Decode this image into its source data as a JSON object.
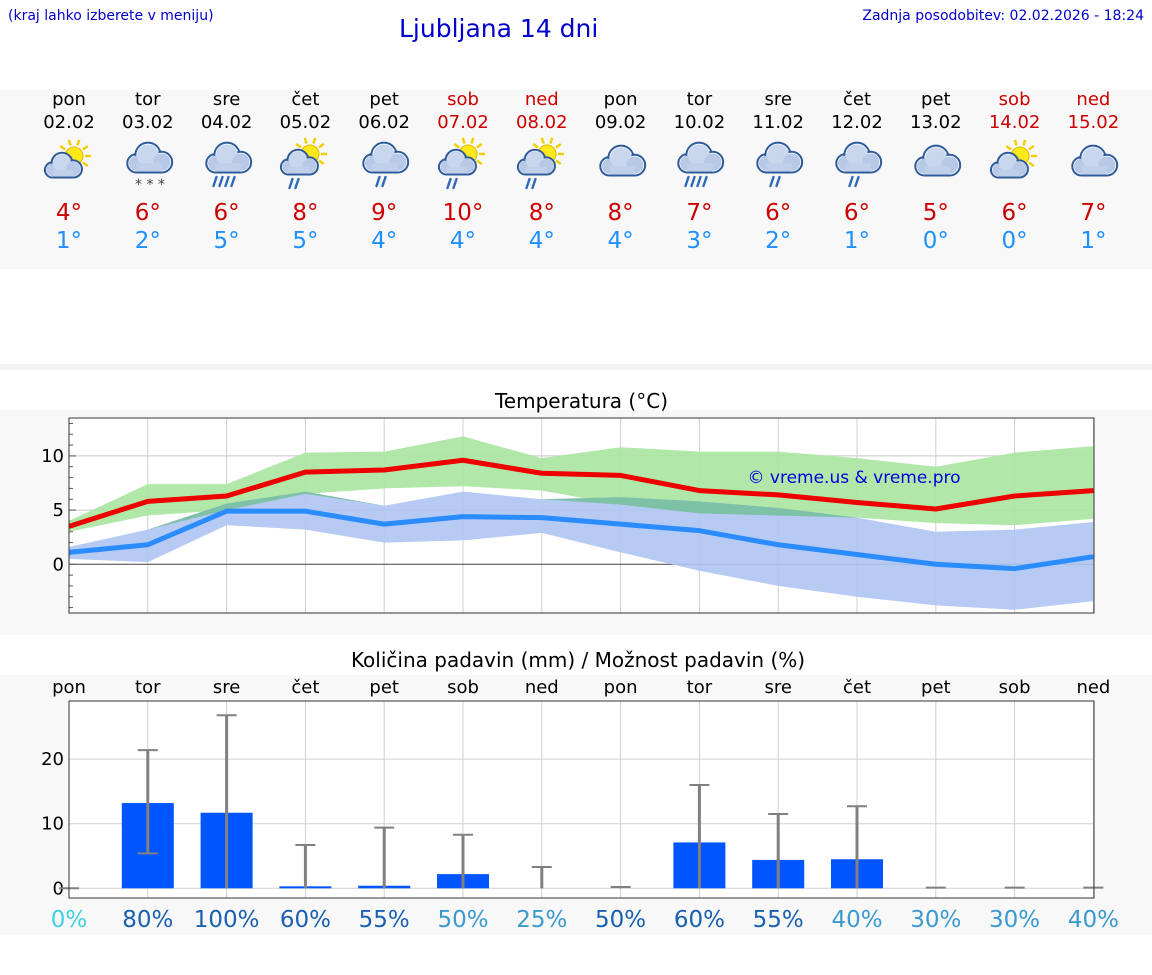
{
  "header": {
    "hint": "(kraj lahko izberete v meniju)",
    "title": "Ljubljana 14 dni",
    "updated": "Zadnja posodobitev: 02.02.2026 - 18:24"
  },
  "colors": {
    "max": "#ee0000",
    "min": "#2a8cff",
    "max_band": "#a8e6a0",
    "min_band": "#aec4f2",
    "overlap": "#78c0a0",
    "bar": "#0055ff",
    "whisker": "#808080"
  },
  "forecast": [
    {
      "day": "pon",
      "date": "02.02",
      "weekend": false,
      "icon": "partly-sunny-icon",
      "max": "4°",
      "min": "1°"
    },
    {
      "day": "tor",
      "date": "03.02",
      "weekend": false,
      "icon": "snow-icon",
      "max": "6°",
      "min": "2°"
    },
    {
      "day": "sre",
      "date": "04.02",
      "weekend": false,
      "icon": "heavy-rain-icon",
      "max": "6°",
      "min": "5°"
    },
    {
      "day": "čet",
      "date": "05.02",
      "weekend": false,
      "icon": "sun-rain-icon",
      "max": "8°",
      "min": "5°"
    },
    {
      "day": "pet",
      "date": "06.02",
      "weekend": false,
      "icon": "rain-icon",
      "max": "9°",
      "min": "4°"
    },
    {
      "day": "sob",
      "date": "07.02",
      "weekend": true,
      "icon": "sun-rain-icon",
      "max": "10°",
      "min": "4°"
    },
    {
      "day": "ned",
      "date": "08.02",
      "weekend": true,
      "icon": "sun-rain-icon",
      "max": "8°",
      "min": "4°"
    },
    {
      "day": "pon",
      "date": "09.02",
      "weekend": false,
      "icon": "cloudy-icon",
      "max": "8°",
      "min": "4°"
    },
    {
      "day": "tor",
      "date": "10.02",
      "weekend": false,
      "icon": "heavy-rain-icon",
      "max": "7°",
      "min": "3°"
    },
    {
      "day": "sre",
      "date": "11.02",
      "weekend": false,
      "icon": "rain-icon",
      "max": "6°",
      "min": "2°"
    },
    {
      "day": "čet",
      "date": "12.02",
      "weekend": false,
      "icon": "rain-icon",
      "max": "6°",
      "min": "1°"
    },
    {
      "day": "pet",
      "date": "13.02",
      "weekend": false,
      "icon": "cloudy-icon",
      "max": "5°",
      "min": "0°"
    },
    {
      "day": "sob",
      "date": "14.02",
      "weekend": true,
      "icon": "partly-sunny-icon",
      "max": "6°",
      "min": "0°"
    },
    {
      "day": "ned",
      "date": "15.02",
      "weekend": true,
      "icon": "cloudy-icon",
      "max": "7°",
      "min": "1°"
    }
  ],
  "chart_data": [
    {
      "type": "line",
      "title": "Temperatura (°C)",
      "watermark": "© vreme.us & vreme.pro",
      "ylim": [
        -4.5,
        13.5
      ],
      "yticks": [
        0,
        5,
        10
      ],
      "x": [
        0,
        1,
        2,
        3,
        4,
        5,
        6,
        7,
        8,
        9,
        10,
        11,
        12,
        13
      ],
      "series": [
        {
          "name": "max",
          "values": [
            3.5,
            5.8,
            6.3,
            8.5,
            8.7,
            9.6,
            8.4,
            8.2,
            6.8,
            6.4,
            5.7,
            5.1,
            6.3,
            6.8
          ]
        },
        {
          "name": "max_low",
          "values": [
            3.0,
            4.5,
            5.0,
            6.5,
            7.0,
            7.2,
            6.8,
            5.5,
            4.7,
            4.5,
            4.3,
            3.8,
            3.6,
            4.2
          ]
        },
        {
          "name": "max_high",
          "values": [
            4.0,
            7.4,
            7.4,
            10.3,
            10.4,
            11.8,
            9.8,
            10.8,
            10.4,
            10.4,
            9.8,
            9.0,
            10.3,
            10.9
          ]
        },
        {
          "name": "min",
          "values": [
            1.1,
            1.8,
            4.9,
            4.9,
            3.7,
            4.4,
            4.3,
            3.7,
            3.1,
            1.8,
            0.9,
            0.0,
            -0.4,
            0.7
          ]
        },
        {
          "name": "min_low",
          "values": [
            0.5,
            0.2,
            3.6,
            3.2,
            2.0,
            2.2,
            2.9,
            1.1,
            -0.6,
            -2.0,
            -3.0,
            -3.8,
            -4.2,
            -3.4
          ]
        },
        {
          "name": "min_high",
          "values": [
            1.6,
            3.2,
            5.6,
            6.7,
            5.4,
            6.7,
            6.0,
            6.2,
            5.8,
            5.2,
            4.3,
            3.0,
            3.2,
            3.9
          ]
        }
      ]
    },
    {
      "type": "bar",
      "title": "Količina padavin (mm) / Možnost padavin (%)",
      "ylim": [
        -1.5,
        29
      ],
      "yticks": [
        0,
        10,
        20
      ],
      "categories": [
        "pon",
        "tor",
        "sre",
        "čet",
        "pet",
        "sob",
        "ned",
        "pon",
        "tor",
        "sre",
        "čet",
        "pet",
        "sob",
        "ned"
      ],
      "values": [
        0,
        13.2,
        11.7,
        0.1,
        0.4,
        2.2,
        0,
        0,
        7.1,
        4.4,
        4.5,
        0,
        0,
        0
      ],
      "error_low": [
        0,
        5.4,
        0,
        0,
        0,
        0,
        0,
        0,
        0,
        0,
        0,
        0,
        0,
        0
      ],
      "error_high": [
        0,
        21.4,
        26.8,
        6.7,
        9.4,
        8.3,
        3.3,
        0.2,
        16.0,
        11.5,
        12.7,
        0.1,
        0.1,
        0.1
      ],
      "probabilities": [
        "0%",
        "80%",
        "100%",
        "60%",
        "55%",
        "50%",
        "25%",
        "50%",
        "60%",
        "55%",
        "40%",
        "30%",
        "30%",
        "40%"
      ],
      "prob_colors": [
        "#40d0e0",
        "#1a60b0",
        "#1a60b0",
        "#1a60b0",
        "#1a60b0",
        "#3a9ad0",
        "#3a9ad0",
        "#1a60b0",
        "#1a60b0",
        "#1a60b0",
        "#3a9ad0",
        "#3a9ad0",
        "#3a9ad0",
        "#3a9ad0"
      ]
    }
  ]
}
